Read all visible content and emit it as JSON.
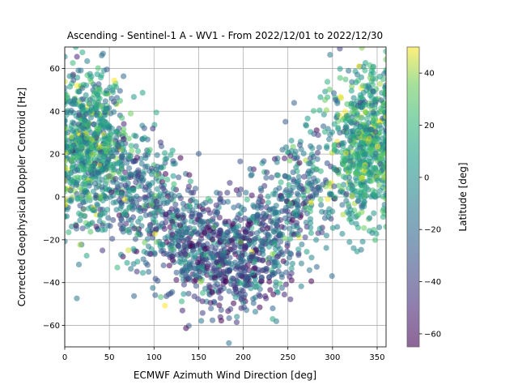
{
  "chart_data": {
    "type": "scatter",
    "title": "Ascending - Sentinel-1 A - WV1 - From 2022/12/01 to 2022/12/30",
    "xlabel": "ECMWF Azimuth Wind Direction [deg]",
    "ylabel": "Corrected Geophysical Doppler Centroid [Hz]",
    "xlim": [
      0,
      360
    ],
    "ylim": [
      -70,
      70
    ],
    "xticks": [
      0,
      50,
      100,
      150,
      200,
      250,
      300,
      350
    ],
    "yticks": [
      -60,
      -40,
      -20,
      0,
      20,
      40,
      60
    ],
    "grid": true,
    "colorbar": {
      "label": "Latitude [deg]",
      "range": [
        -65,
        50
      ],
      "ticks": [
        -60,
        -40,
        -20,
        0,
        20,
        40
      ],
      "colormap": "viridis",
      "alpha": 0.6
    },
    "points_note": "dense cloud of points; mirrored V shape with ~-35 Hz minimum near 190 deg",
    "clusters": [
      {
        "x_center": 25,
        "y_center": 25,
        "x_spread": 20,
        "y_spread": 18,
        "count": 700,
        "lat_mean": 5,
        "lat_spread": 22
      },
      {
        "x_center": 70,
        "y_center": 5,
        "x_spread": 20,
        "y_spread": 15,
        "count": 250,
        "lat_mean": -15,
        "lat_spread": 25
      },
      {
        "x_center": 110,
        "y_center": -10,
        "x_spread": 20,
        "y_spread": 15,
        "count": 220,
        "lat_mean": -20,
        "lat_spread": 25
      },
      {
        "x_center": 150,
        "y_center": -25,
        "x_spread": 18,
        "y_spread": 13,
        "count": 260,
        "lat_mean": -30,
        "lat_spread": 25
      },
      {
        "x_center": 190,
        "y_center": -30,
        "x_spread": 18,
        "y_spread": 13,
        "count": 300,
        "lat_mean": -35,
        "lat_spread": 22
      },
      {
        "x_center": 230,
        "y_center": -20,
        "x_spread": 20,
        "y_spread": 14,
        "count": 250,
        "lat_mean": -25,
        "lat_spread": 25
      },
      {
        "x_center": 270,
        "y_center": 5,
        "x_spread": 20,
        "y_spread": 15,
        "count": 220,
        "lat_mean": -15,
        "lat_spread": 25
      },
      {
        "x_center": 335,
        "y_center": 25,
        "x_spread": 18,
        "y_spread": 18,
        "count": 650,
        "lat_mean": 10,
        "lat_spread": 20
      }
    ]
  }
}
